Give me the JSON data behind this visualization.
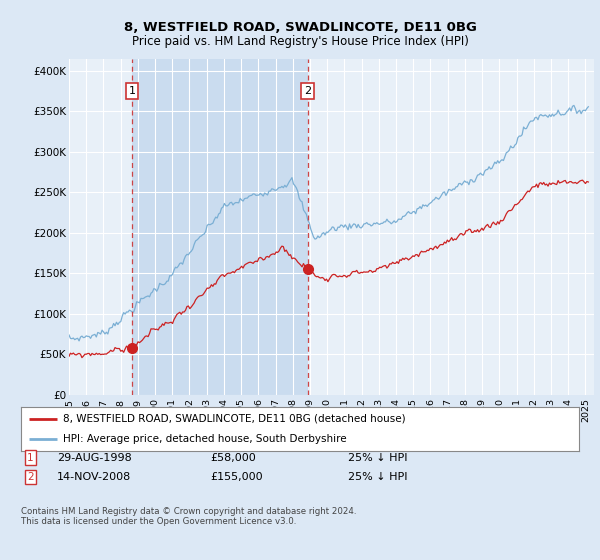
{
  "title1": "8, WESTFIELD ROAD, SWADLINCOTE, DE11 0BG",
  "title2": "Price paid vs. HM Land Registry's House Price Index (HPI)",
  "ylabel_ticks": [
    "£0",
    "£50K",
    "£100K",
    "£150K",
    "£200K",
    "£250K",
    "£300K",
    "£350K",
    "£400K"
  ],
  "ylim": [
    0,
    415000
  ],
  "xlim_start": 1995.0,
  "xlim_end": 2025.5,
  "sale1_date": 1998.66,
  "sale1_price": 58000,
  "sale2_date": 2008.87,
  "sale2_price": 155000,
  "legend_line1": "8, WESTFIELD ROAD, SWADLINCOTE, DE11 0BG (detached house)",
  "legend_line2": "HPI: Average price, detached house, South Derbyshire",
  "table_row1_date": "29-AUG-1998",
  "table_row1_price": "£58,000",
  "table_row1_hpi": "25% ↓ HPI",
  "table_row2_date": "14-NOV-2008",
  "table_row2_price": "£155,000",
  "table_row2_hpi": "25% ↓ HPI",
  "footnote": "Contains HM Land Registry data © Crown copyright and database right 2024.\nThis data is licensed under the Open Government Licence v3.0.",
  "hpi_color": "#7bafd4",
  "sold_color": "#cc2222",
  "background_color": "#dce8f5",
  "plot_bg": "#e8f0f8",
  "shade_color": "#c5d9ee",
  "grid_color": "#ffffff",
  "vline_color": "#cc3333"
}
